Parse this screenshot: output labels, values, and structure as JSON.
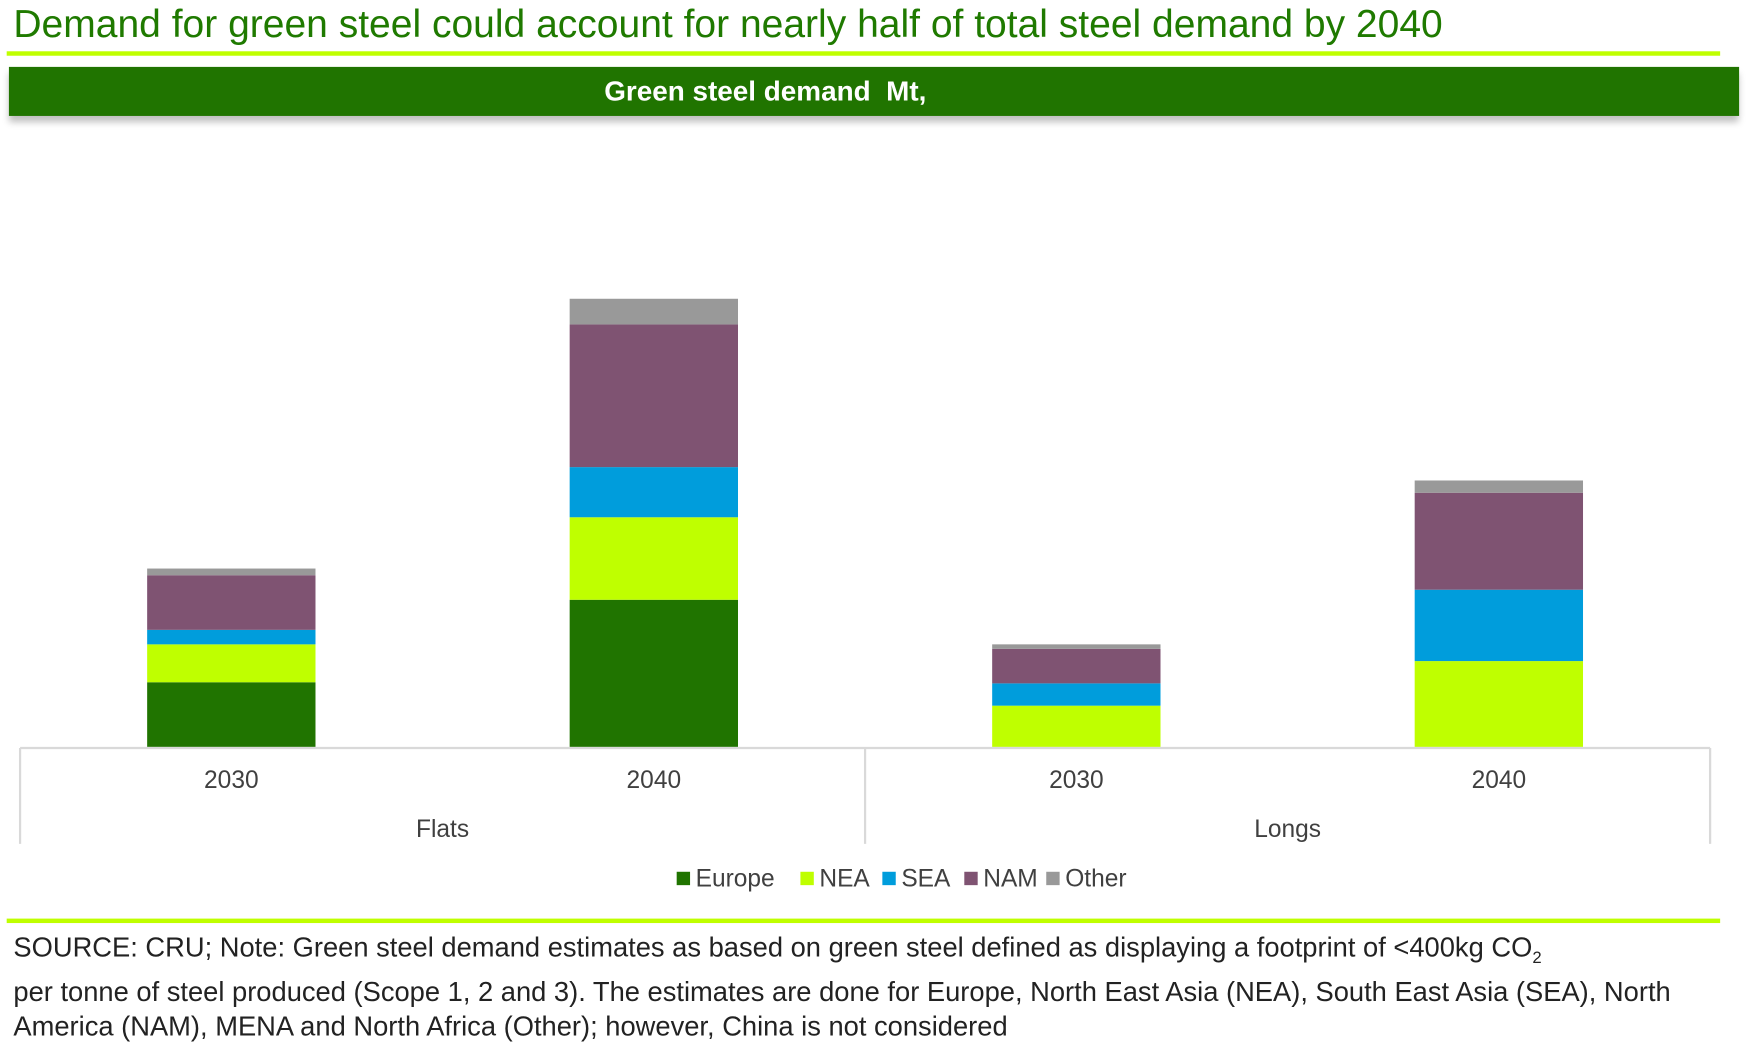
{
  "header": {
    "title": "Demand for green steel could account for nearly half of total steel demand by 2040"
  },
  "chart_data": {
    "type": "bar",
    "stacked": true,
    "title": "Green steel demand  Mt,",
    "groups": [
      {
        "label": "Flats",
        "categories": [
          "2030",
          "2040"
        ]
      },
      {
        "label": "Longs",
        "categories": [
          "2030",
          "2040"
        ]
      }
    ],
    "categories": [
      "Flats 2030",
      "Flats 2040",
      "Longs 2030",
      "Longs 2040"
    ],
    "series": [
      {
        "name": "Europe",
        "color": "#207400",
        "values": [
          58,
          132,
          0,
          0
        ]
      },
      {
        "name": "NEA",
        "color": "#bfff00",
        "values": [
          34,
          74,
          37,
          77
        ]
      },
      {
        "name": "SEA",
        "color": "#009ddc",
        "values": [
          13,
          45,
          20,
          64
        ]
      },
      {
        "name": "NAM",
        "color": "#7f5372",
        "values": [
          49,
          128,
          31,
          87
        ]
      },
      {
        "name": "Other",
        "color": "#999999",
        "values": [
          6,
          23,
          4,
          11
        ]
      }
    ],
    "ylim": [
      0,
      540
    ],
    "grid": false,
    "legend": "bottom-center",
    "xlabel": "",
    "ylabel": ""
  },
  "footnote": {
    "part1": "SOURCE: CRU; Note: Green steel demand estimates as based on green steel defined as displaying a footprint of <400kg CO",
    "sub": "2",
    "part2": "per tonne of steel produced (Scope 1, 2 and 3). The estimates are done for Europe, North East Asia (NEA), South East Asia (SEA), North America (NAM), MENA and North Africa (Other); however, China is not considered"
  }
}
